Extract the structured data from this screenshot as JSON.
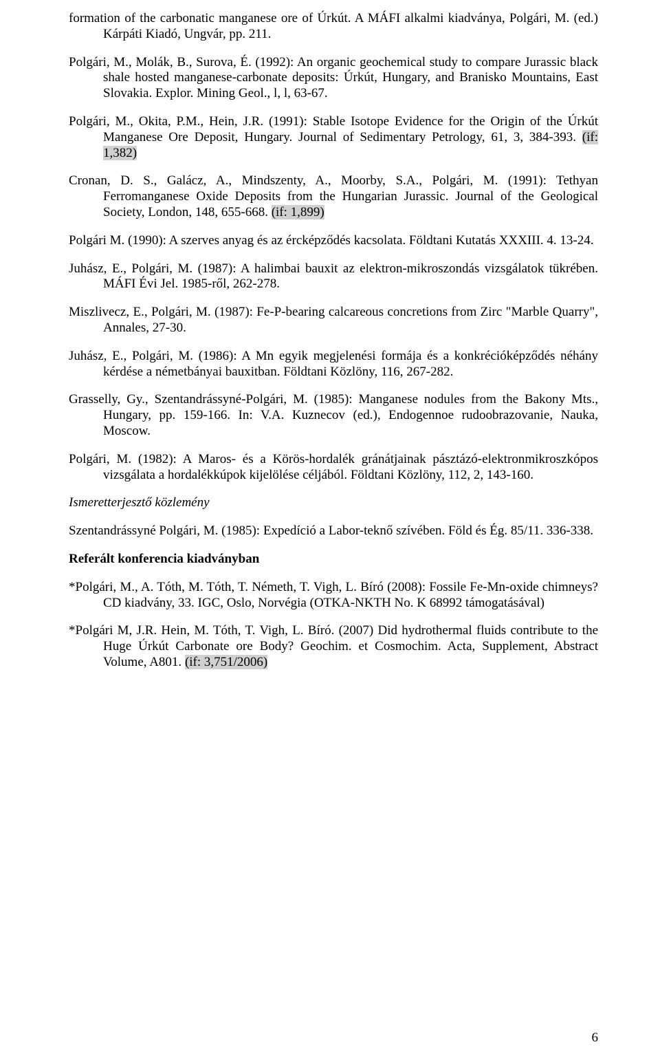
{
  "refs": [
    {
      "pre": "formation of the carbonatic manganese ore of Úrkút. A MÁFI alkalmi kiadványa, Polgári, M. (ed.) Kárpáti Kiadó, Ungvár, pp. 211.",
      "hl": ""
    },
    {
      "pre": "Polgári, M., Molák, B., Surova, É. (1992): An organic geochemical study to compare Jurassic black shale hosted manganese-carbonate deposits: Úrkút, Hungary, and Branisko Mountains, East Slovakia. Explor. Mining Geol., l, l, 63-67.",
      "hl": ""
    },
    {
      "pre": "Polgári, M., Okita, P.M., Hein, J.R. (1991): Stable Isotope Evidence for the Origin of the Úrkút Manganese Ore Deposit, Hungary. Journal of Sedimentary Petrology, 61, 3, 384-393. ",
      "hl": "(if: 1,382)"
    },
    {
      "pre": "Cronan, D. S., Galácz, A., Mindszenty, A., Moorby, S.A., Polgári, M. (1991): Tethyan Ferromanganese Oxide Deposits from the Hungarian Jurassic. Journal of the Geological Society, London, 148, 655-668. ",
      "hl": "(if: 1,899)"
    },
    {
      "pre": "Polgári M. (1990): A szerves anyag és az ércképződés kacsolata. Földtani Kutatás XXXIII. 4. 13-24.",
      "hl": ""
    },
    {
      "pre": "Juhász, E., Polgári, M. (1987): A halimbai bauxit az elektron-mikroszondás vizsgálatok tükrében. MÁFI Évi Jel. 1985-ről, 262-278.",
      "hl": ""
    },
    {
      "pre": "Miszlivecz, E., Polgári, M. (1987): Fe-P-bearing calcareous concretions from Zirc \"Marble Quarry\", Annales, 27-30.",
      "hl": ""
    },
    {
      "pre": "Juhász, E., Polgári, M. (1986): A Mn egyik megjelenési formája és a konkrécióképződés néhány kérdése a németbányai bauxitban. Földtani Közlöny, 116, 267-282.",
      "hl": ""
    },
    {
      "pre": "Grasselly, Gy., Szentandrássyné-Polgári, M. (1985): Manganese nodules from the Bakony Mts., Hungary, pp. 159-166. In: V.A. Kuznecov (ed.), Endogennoe rudoobrazovanie, Nauka, Moscow.",
      "hl": ""
    },
    {
      "pre": "Polgári, M. (1982): A Maros- és a Körös-hordalék gránátjainak pásztázó-elektronmikroszkópos vizsgálata a hordalékkúpok kijelölése céljából. Földtani Közlöny, 112, 2, 143-160.",
      "hl": "",
      "lastjust": true
    }
  ],
  "section1": "Ismeretterjesztő közlemény",
  "refs2": [
    {
      "pre": "Szentandrássyné Polgári, M. (1985): Expedíció a Labor-teknő szívében. Föld és Ég. 85/11. 336-338.",
      "hl": ""
    }
  ],
  "section2": "Referált konferencia kiadványban",
  "refs3": [
    {
      "pre": "*Polgári, M., A. Tóth, M. Tóth, T. Németh, T. Vigh, L. Bíró (2008): Fossile Fe-Mn-oxide chimneys? CD kiadvány, 33. IGC, Oslo, Norvégia (OTKA-NKTH No. K 68992 támogatásával)",
      "hl": ""
    },
    {
      "pre": "*Polgári M, J.R. Hein, M. Tóth, T. Vigh, L. Bíró. (2007) Did hydrothermal fluids contribute to the Huge Úrkút Carbonate ore Body? Geochim. et Cosmochim. Acta, Supplement, Abstract Volume, A801. ",
      "hl": "(if: 3,751/2006)"
    }
  ],
  "pagenum": "6"
}
